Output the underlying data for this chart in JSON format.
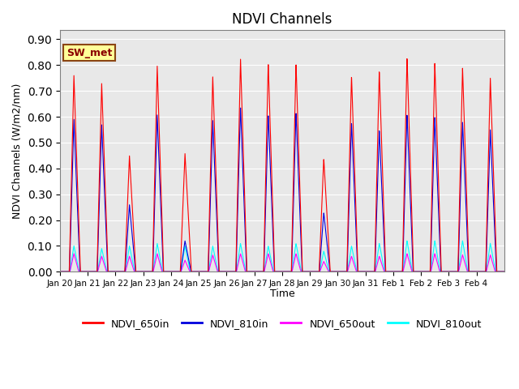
{
  "title": "NDVI Channels",
  "xlabel": "Time",
  "ylabel": "NDVI Channels (W/m2/nm)",
  "ylim": [
    0.0,
    0.935
  ],
  "yticks": [
    0.0,
    0.1,
    0.2,
    0.3,
    0.4,
    0.5,
    0.6,
    0.7,
    0.8,
    0.9
  ],
  "colors": {
    "NDVI_650in": "#ff0000",
    "NDVI_810in": "#0000dd",
    "NDVI_650out": "#ff00ff",
    "NDVI_810out": "#00ffff"
  },
  "label_box": "SW_met",
  "label_box_color": "#ffff99",
  "label_box_edge": "#8B4513",
  "label_box_text": "#8B0000",
  "background_color": "#e8e8e8",
  "xtick_labels": [
    "Jan 20",
    "Jan 21",
    "Jan 22",
    "Jan 23",
    "Jan 24",
    "Jan 25",
    "Jan 26",
    "Jan 27",
    "Jan 28",
    "Jan 29",
    "Jan 30",
    "Jan 31",
    "Feb 1",
    "Feb 2",
    "Feb 3",
    "Feb 4"
  ],
  "peak_heights_650in": [
    0.76,
    0.73,
    0.45,
    0.8,
    0.46,
    0.76,
    0.83,
    0.81,
    0.81,
    0.44,
    0.76,
    0.78,
    0.83,
    0.81,
    0.79,
    0.75
  ],
  "peak_heights_810in": [
    0.59,
    0.57,
    0.26,
    0.61,
    0.12,
    0.59,
    0.64,
    0.61,
    0.62,
    0.23,
    0.58,
    0.55,
    0.61,
    0.6,
    0.58,
    0.55
  ],
  "peak_heights_650out": [
    0.07,
    0.06,
    0.06,
    0.07,
    0.045,
    0.065,
    0.07,
    0.07,
    0.07,
    0.04,
    0.06,
    0.06,
    0.07,
    0.07,
    0.065,
    0.065
  ],
  "peak_heights_810out": [
    0.1,
    0.09,
    0.1,
    0.11,
    0.1,
    0.1,
    0.11,
    0.1,
    0.11,
    0.08,
    0.1,
    0.11,
    0.12,
    0.12,
    0.12,
    0.11
  ],
  "days": 16,
  "pts_per_day": 200
}
